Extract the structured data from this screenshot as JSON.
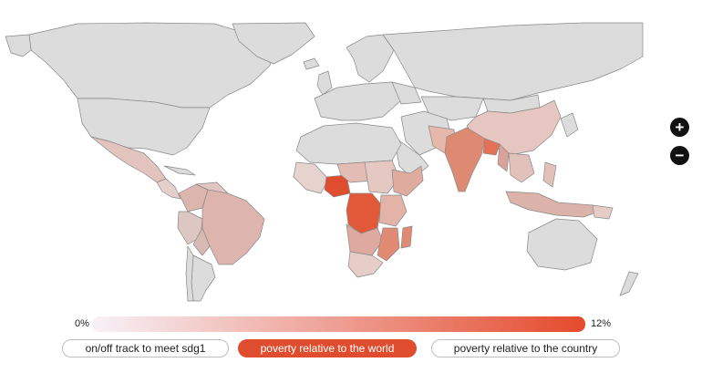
{
  "colors": {
    "land": "#dcdcdc",
    "border": "#888888",
    "accent": "#e04d2e",
    "legend_start": "#f7f2f8",
    "legend_end": "#e54a2c"
  },
  "zoom": {
    "in_label": "+",
    "out_label": "−",
    "in_icon": "plus-icon",
    "out_icon": "minus-icon"
  },
  "legend": {
    "min_label": "0%",
    "max_label": "12%"
  },
  "tabs": [
    {
      "label": "on/off track to meet sdg1",
      "active": false
    },
    {
      "label": "poverty relative to the world",
      "active": true
    },
    {
      "label": "poverty relative to the country",
      "active": false
    }
  ]
}
